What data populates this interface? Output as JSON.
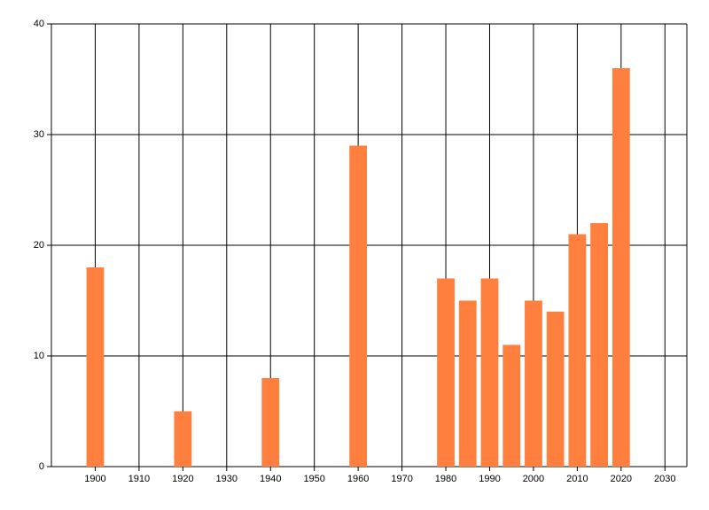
{
  "chart_data": {
    "type": "bar",
    "x": [
      1900,
      1920,
      1940,
      1960,
      1980,
      1985,
      1990,
      1995,
      2000,
      2005,
      2010,
      2015,
      2020
    ],
    "values": [
      18,
      5,
      8,
      29,
      17,
      15,
      17,
      11,
      15,
      14,
      21,
      22,
      36
    ],
    "color": "#ff7f3f",
    "xlim": [
      1890,
      2035
    ],
    "xticks": [
      1900,
      1910,
      1920,
      1930,
      1940,
      1950,
      1960,
      1970,
      1980,
      1990,
      2000,
      2010,
      2020,
      2030
    ],
    "ylim": [
      0,
      40
    ],
    "yticks": [
      0,
      10,
      20,
      30,
      40
    ],
    "grid": true
  }
}
